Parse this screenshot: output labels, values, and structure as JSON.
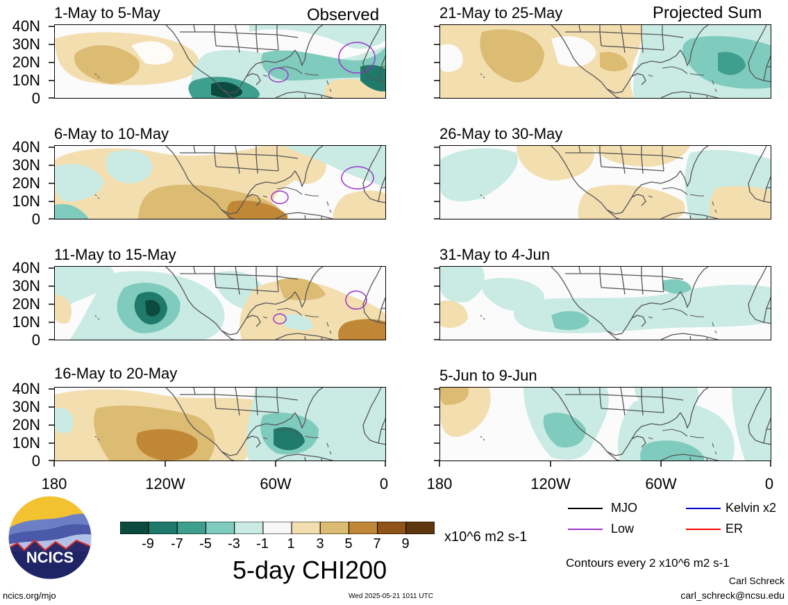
{
  "header": {
    "left_tag": "Observed",
    "right_tag": "Projected Sum"
  },
  "panels_left": [
    {
      "title": "1-May to 5-May"
    },
    {
      "title": "6-May to 10-May"
    },
    {
      "title": "11-May to 15-May"
    },
    {
      "title": "16-May to 20-May"
    }
  ],
  "panels_right": [
    {
      "title": "21-May to 25-May"
    },
    {
      "title": "26-May to 30-May"
    },
    {
      "title": "31-May to 4-Jun"
    },
    {
      "title": "5-Jun to 9-Jun"
    }
  ],
  "lat_labels": [
    "40N",
    "30N",
    "20N",
    "10N",
    "0"
  ],
  "lon_labels": [
    "180",
    "120W",
    "60W",
    "0"
  ],
  "colorbar": {
    "labels": [
      "-9",
      "-7",
      "-5",
      "-3",
      "-1",
      "1",
      "3",
      "5",
      "7",
      "9"
    ],
    "colors": [
      "#0b4a3f",
      "#1f7a6b",
      "#3f9f8e",
      "#7fcbbd",
      "#c9ebe4",
      "#f7f7f7",
      "#f3deb0",
      "#dcbb72",
      "#c08737",
      "#8e5418",
      "#5e3610"
    ],
    "units": "x10^6 m2 s-1",
    "title": "5-day CHI200"
  },
  "legend": {
    "mjo": "MJO",
    "kelvin": "Kelvin x2",
    "low": "Low",
    "er": "ER",
    "mjo_color": "#000000",
    "kelvin_color": "#0000cc",
    "low_color": "#9933cc",
    "er_color": "#ff0000",
    "contours": "Contours every 2 x10^6 m2 s-1"
  },
  "credits": {
    "author": "Carl Schreck",
    "email": "carl_schreck@ncsu.edu",
    "site": "ncics.org/mjo",
    "timestamp": "Wed 2025-05-21 1011 UTC",
    "logo_text": "NCICS"
  }
}
